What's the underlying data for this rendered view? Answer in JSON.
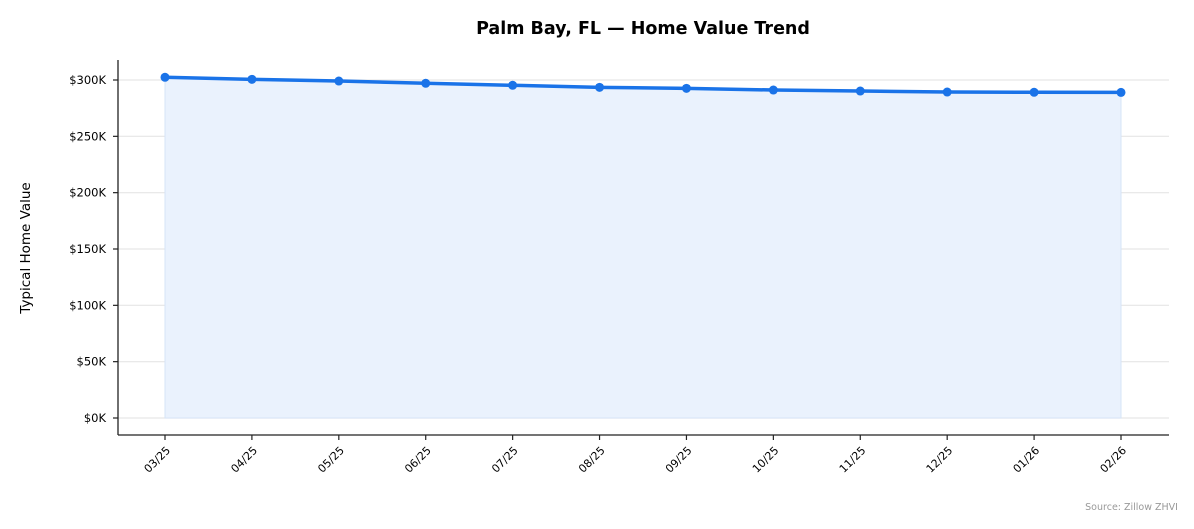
{
  "chart_data": {
    "type": "line",
    "title": "Palm Bay, FL — Home Value Trend",
    "xlabel": "",
    "ylabel": "Typical Home Value",
    "categories": [
      "03/25",
      "04/25",
      "05/25",
      "06/25",
      "07/25",
      "08/25",
      "09/25",
      "10/25",
      "11/25",
      "12/25",
      "01/26",
      "02/26"
    ],
    "series": [
      {
        "name": "Typical Home Value",
        "values": [
          302400,
          300600,
          299100,
          297100,
          295300,
          293500,
          292600,
          291100,
          290200,
          289300,
          289100,
          289000
        ],
        "color": "#1a73e8",
        "fill": "#eaf2fd",
        "markers": true,
        "area_fill": true
      }
    ],
    "ylim": [
      0,
      300000
    ],
    "yticks": [
      0,
      50000,
      100000,
      150000,
      200000,
      250000,
      300000
    ],
    "ytick_labels": [
      "$0K",
      "$50K",
      "$100K",
      "$150K",
      "$200K",
      "$250K",
      "$300K"
    ],
    "grid": "horizontal",
    "legend": "none",
    "annotations": [
      "Source: Zillow ZHVI"
    ]
  },
  "source_note": "Source: Zillow ZHVI"
}
